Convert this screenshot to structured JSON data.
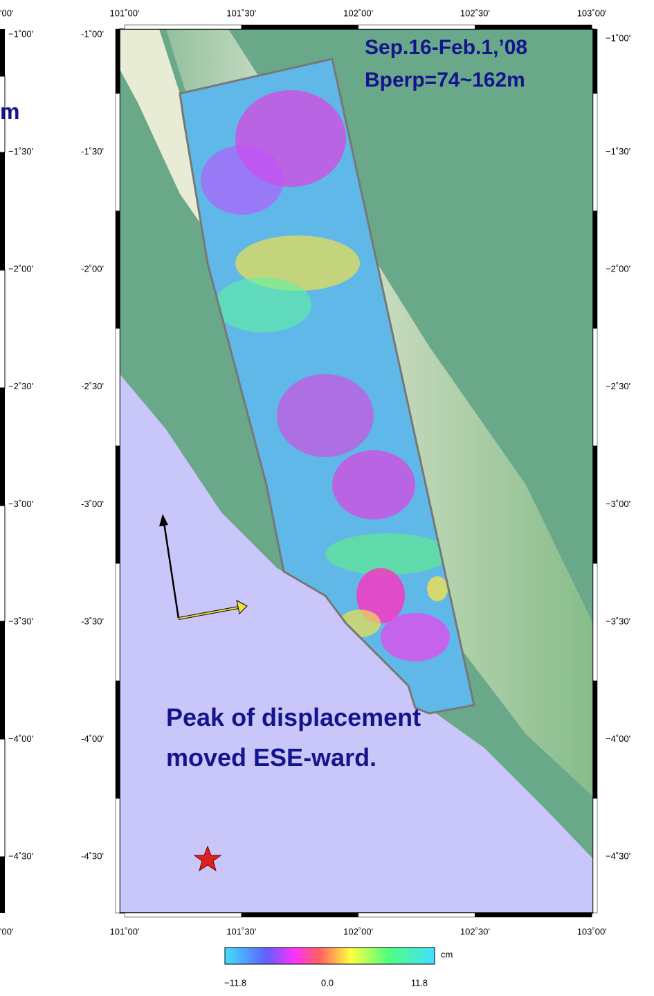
{
  "left_panel": {
    "top_label": "'00'",
    "bottom_label": "'00'",
    "fragment": "m",
    "lat_labels": [
      "−1˚00'",
      "−1˚30'",
      "−2˚00'",
      "−2˚30'",
      "−3˚00'",
      "−3˚30'",
      "−4˚00'",
      "−4˚30'"
    ]
  },
  "map": {
    "top_lon_labels": [
      "101˚00'",
      "101˚30'",
      "102˚00'",
      "102˚30'",
      "103˚00'"
    ],
    "bottom_lon_labels": [
      "101˚00'",
      "101˚30'",
      "102˚00'",
      "102˚30'",
      "103˚00'"
    ],
    "left_lat_labels": [
      "-1˚00'",
      "-1˚30'",
      "-2˚00'",
      "-2˚30'",
      "-3˚00'",
      "-3˚30'",
      "-4˚00'",
      "-4˚30'"
    ],
    "right_lat_labels": [
      "−1˚00'",
      "−1˚30'",
      "−2˚00'",
      "−2˚30'",
      "−3˚00'",
      "−3˚30'",
      "−4˚00'",
      "−4˚30'"
    ],
    "title_lines": [
      "Sep.16-Feb.1,’08",
      "Bperp=74~162m"
    ],
    "annotation_lines": [
      "Peak of displacement",
      "moved  ESE-ward."
    ]
  },
  "colorbar": {
    "unit": "cm",
    "labels": [
      "−11.8",
      "0.0",
      "11.8"
    ]
  }
}
